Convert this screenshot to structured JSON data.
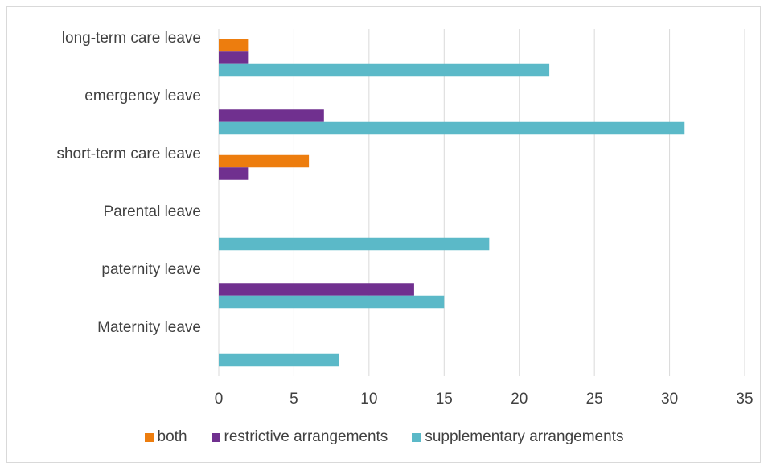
{
  "chart_data": {
    "type": "bar",
    "orientation": "horizontal",
    "categories": [
      "Maternity leave",
      "paternity leave",
      "Parental leave",
      "short-term care leave",
      "emergency leave",
      "long-term care leave"
    ],
    "series": [
      {
        "name": "both",
        "color": "#ED7D0E",
        "values": [
          0,
          0,
          0,
          6,
          0,
          2
        ]
      },
      {
        "name": "restrictive arrangements",
        "color": "#70308F",
        "values": [
          0,
          13,
          0,
          2,
          7,
          2
        ]
      },
      {
        "name": "supplementary arrangements",
        "color": "#5BB9C8",
        "values": [
          8,
          15,
          18,
          0,
          31,
          22
        ]
      }
    ],
    "xlim": [
      0,
      35
    ],
    "xticks": [
      "0",
      "5",
      "10",
      "15",
      "20",
      "25",
      "30",
      "35"
    ],
    "grid": true,
    "legend_position": "bottom"
  }
}
